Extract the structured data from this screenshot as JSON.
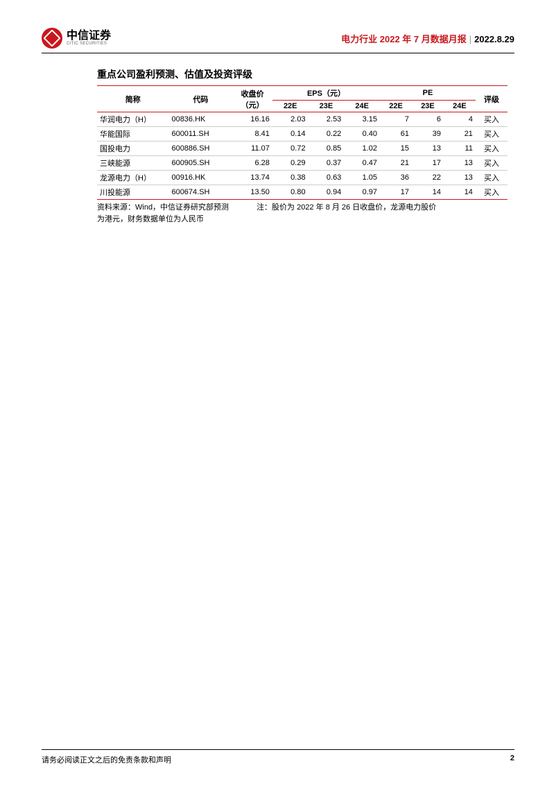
{
  "header": {
    "logo_cn": "中信证券",
    "logo_en": "CITIC SECURITIES",
    "title": "电力行业 2022 年 7 月数据月报",
    "separator": "|",
    "date": "2022.8.29"
  },
  "section": {
    "title": "重点公司盈利预测、估值及投资评级"
  },
  "table": {
    "headers": {
      "name": "简称",
      "code": "代码",
      "price": "收盘价（元）",
      "eps_group": "EPS（元）",
      "pe_group": "PE",
      "rating": "评级",
      "y22e": "22E",
      "y23e": "23E",
      "y24e": "24E"
    },
    "rows": [
      {
        "name": "华润电力（H）",
        "code": "00836.HK",
        "price": "16.16",
        "eps22": "2.03",
        "eps23": "2.53",
        "eps24": "3.15",
        "pe22": "7",
        "pe23": "6",
        "pe24": "4",
        "rating": "买入"
      },
      {
        "name": "华能国际",
        "code": "600011.SH",
        "price": "8.41",
        "eps22": "0.14",
        "eps23": "0.22",
        "eps24": "0.40",
        "pe22": "61",
        "pe23": "39",
        "pe24": "21",
        "rating": "买入"
      },
      {
        "name": "国投电力",
        "code": "600886.SH",
        "price": "11.07",
        "eps22": "0.72",
        "eps23": "0.85",
        "eps24": "1.02",
        "pe22": "15",
        "pe23": "13",
        "pe24": "11",
        "rating": "买入"
      },
      {
        "name": "三峡能源",
        "code": "600905.SH",
        "price": "6.28",
        "eps22": "0.29",
        "eps23": "0.37",
        "eps24": "0.47",
        "pe22": "21",
        "pe23": "17",
        "pe24": "13",
        "rating": "买入"
      },
      {
        "name": "龙源电力（H）",
        "code": "00916.HK",
        "price": "13.74",
        "eps22": "0.38",
        "eps23": "0.63",
        "eps24": "1.05",
        "pe22": "36",
        "pe23": "22",
        "pe24": "13",
        "rating": "买入"
      },
      {
        "name": "川投能源",
        "code": "600674.SH",
        "price": "13.50",
        "eps22": "0.80",
        "eps23": "0.94",
        "eps24": "0.97",
        "pe22": "17",
        "pe23": "14",
        "pe24": "14",
        "rating": "买入"
      }
    ],
    "note_source": "资料来源：Wind，中信证券研究部预测",
    "note_remark1": "注：股价为 2022 年 8 月 26 日收盘价，龙源电力股价",
    "note_remark2": "为港元，财务数据单位为人民币"
  },
  "footer": {
    "disclaimer": "请务必阅读正文之后的免责条款和声明",
    "page": "2"
  },
  "styling": {
    "brand_color": "#c8181e",
    "text_color": "#000000",
    "border_color": "#cccccc",
    "background": "#ffffff",
    "title_fontsize": 14,
    "table_fontsize": 11,
    "header_fontsize": 13,
    "footer_fontsize": 11
  }
}
